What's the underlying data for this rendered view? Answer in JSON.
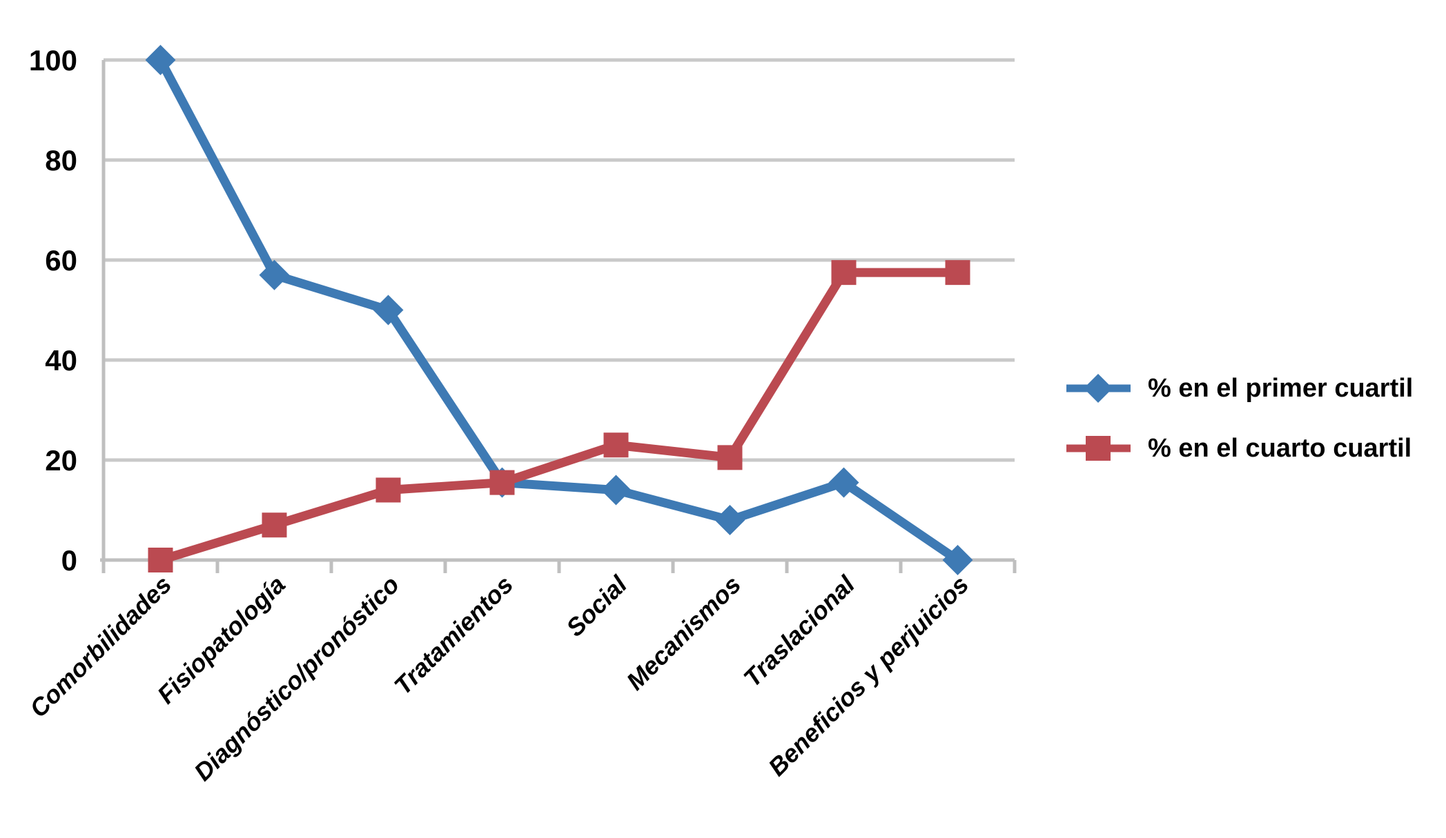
{
  "chart_data": {
    "type": "line",
    "title": "",
    "categories": [
      "Comorbilidades",
      "Fisiopatología",
      "Diagnóstico/pronóstico",
      "Tratamientos",
      "Social",
      "Mecanismos",
      "Traslacional",
      "Beneficios y perjuicios"
    ],
    "series": [
      {
        "name": "% en el primer cuartil",
        "marker": "diamond",
        "color": "#3E7AB4",
        "values": [
          100,
          57,
          50,
          15.5,
          14,
          8,
          15.5,
          0
        ]
      },
      {
        "name": "% en el cuarto cuartil",
        "marker": "square",
        "color": "#BB4A51",
        "values": [
          0,
          7,
          14,
          15.5,
          23,
          20.5,
          57.5,
          57.5
        ]
      }
    ],
    "xlabel": "",
    "ylabel": "",
    "y_axis": {
      "min": 0,
      "max": 100,
      "step": 20,
      "ticks": [
        "0",
        "20",
        "40",
        "60",
        "80",
        "100"
      ]
    },
    "x_labels_rotation_degrees": 45,
    "grid": true,
    "legend_position": "right",
    "colors": {
      "background": "#FFFFFF",
      "gridline": "#C9C9C9",
      "axis": "#BFBFBF",
      "text": "#000000"
    }
  }
}
